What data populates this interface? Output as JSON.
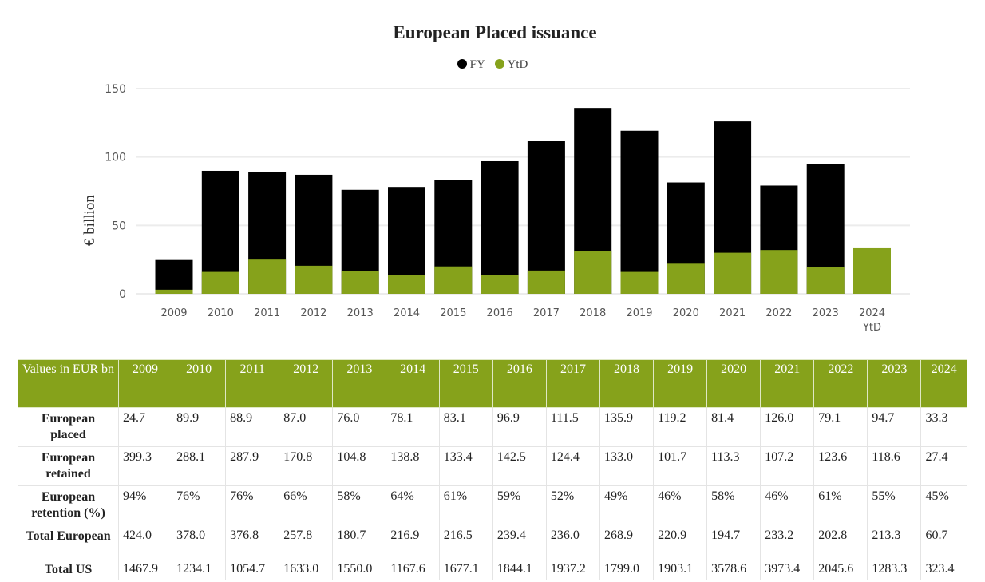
{
  "chart_data": {
    "type": "bar",
    "title": "European Placed issuance",
    "ylabel": "€ billion",
    "xlabel": "",
    "ylim": [
      0,
      150
    ],
    "yticks": [
      0,
      50,
      100,
      150
    ],
    "grid": true,
    "legend_position": "top-center",
    "categories": [
      "2009",
      "2010",
      "2011",
      "2012",
      "2013",
      "2014",
      "2015",
      "2016",
      "2017",
      "2018",
      "2019",
      "2020",
      "2021",
      "2022",
      "2023",
      "2024 YtD"
    ],
    "series": [
      {
        "name": "FY",
        "color": "#000000",
        "values": [
          24.7,
          89.9,
          88.9,
          87.0,
          76.0,
          78.1,
          83.1,
          96.9,
          111.5,
          135.9,
          119.2,
          81.4,
          126.0,
          79.1,
          94.7,
          null
        ]
      },
      {
        "name": "YtD",
        "color": "#86a21b",
        "values": [
          3,
          16,
          25,
          20.5,
          16.5,
          14,
          20,
          14,
          17,
          31.5,
          16,
          22,
          30,
          32,
          19.5,
          33.3
        ]
      }
    ]
  },
  "table": {
    "corner": "Values in EUR bn",
    "years": [
      "2009",
      "2010",
      "2011",
      "2012",
      "2013",
      "2014",
      "2015",
      "2016",
      "2017",
      "2018",
      "2019",
      "2020",
      "2021",
      "2022",
      "2023",
      "2024"
    ],
    "rows": [
      {
        "label": "European placed",
        "values": [
          "24.7",
          "89.9",
          "88.9",
          "87.0",
          "76.0",
          "78.1",
          "83.1",
          "96.9",
          "111.5",
          "135.9",
          "119.2",
          "81.4",
          "126.0",
          "79.1",
          "94.7",
          "33.3"
        ]
      },
      {
        "label": "European retained",
        "values": [
          "399.3",
          "288.1",
          "287.9",
          "170.8",
          "104.8",
          "138.8",
          "133.4",
          "142.5",
          "124.4",
          "133.0",
          "101.7",
          "113.3",
          "107.2",
          "123.6",
          "118.6",
          "27.4"
        ]
      },
      {
        "label": "European retention (%)",
        "values": [
          "94%",
          "76%",
          "76%",
          "66%",
          "58%",
          "64%",
          "61%",
          "59%",
          "52%",
          "49%",
          "46%",
          "58%",
          "46%",
          "61%",
          "55%",
          "45%"
        ]
      },
      {
        "label": "Total European",
        "values": [
          "424.0",
          "378.0",
          "376.8",
          "257.8",
          "180.7",
          "216.9",
          "216.5",
          "239.4",
          "236.0",
          "268.9",
          "220.9",
          "194.7",
          "233.2",
          "202.8",
          "213.3",
          "60.7"
        ]
      },
      {
        "label": "Total US",
        "values": [
          "1467.9",
          "1234.1",
          "1054.7",
          "1633.0",
          "1550.0",
          "1167.6",
          "1677.1",
          "1844.1",
          "1937.2",
          "1799.0",
          "1903.1",
          "3578.6",
          "3973.4",
          "2045.6",
          "1283.3",
          "323.4"
        ]
      }
    ]
  }
}
